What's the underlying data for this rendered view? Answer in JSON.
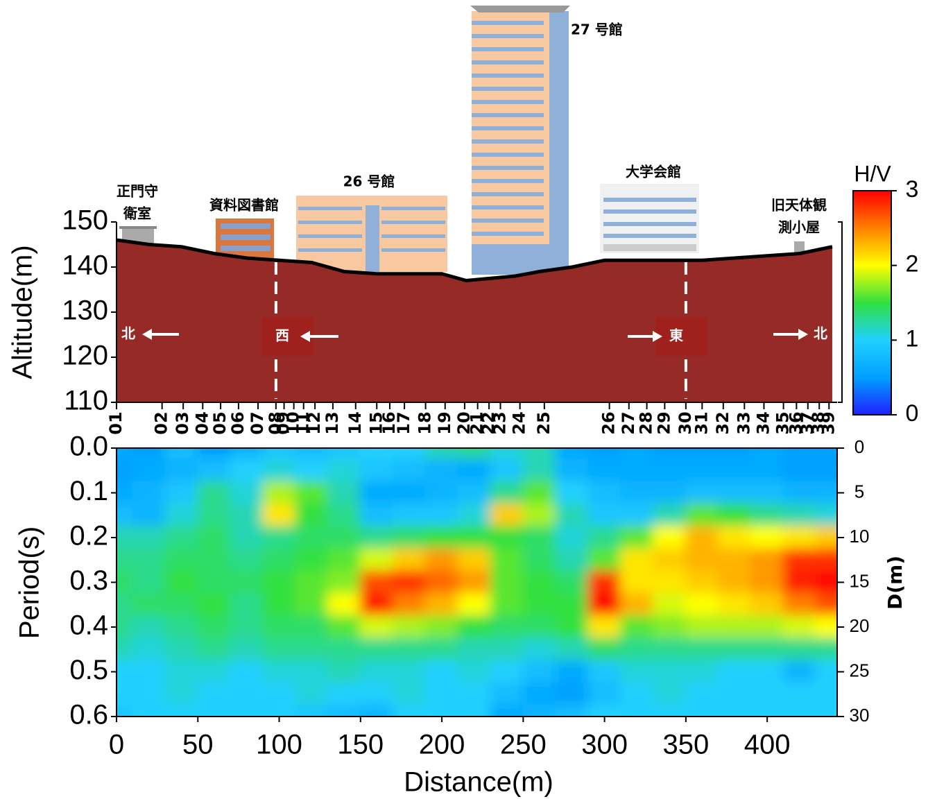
{
  "chart_data": [
    {
      "type": "area",
      "y_label": "Altitude(m)",
      "xlim": [
        0,
        443
      ],
      "ylim": [
        110,
        150
      ],
      "yticks": [
        110,
        120,
        130,
        140,
        150
      ],
      "x": [
        0,
        20,
        40,
        60,
        80,
        100,
        120,
        140,
        160,
        180,
        200,
        215,
        230,
        245,
        260,
        280,
        300,
        320,
        340,
        360,
        380,
        400,
        420,
        440
      ],
      "values": [
        146,
        145,
        144.5,
        143,
        142,
        141.5,
        141,
        139,
        138.5,
        138.5,
        138.5,
        137,
        137.5,
        138,
        139,
        140,
        141.5,
        141.5,
        141.5,
        141.5,
        142,
        142.5,
        143,
        144.5
      ],
      "color": "#962a26",
      "line_color": "#000000",
      "buildings": [
        [
          "正門守",
          "衛室"
        ],
        [
          "資料図書館"
        ],
        [
          "26 号館"
        ],
        [
          "27 号館"
        ],
        [
          "大学会館"
        ],
        [
          "旧天体観",
          "測小屋"
        ]
      ],
      "directions": [
        "北",
        "西",
        "東",
        "北"
      ],
      "stations": {
        "names": [
          "01",
          "02",
          "03",
          "04",
          "05",
          "06",
          "07",
          "08",
          "09",
          "10",
          "11",
          "12",
          "13",
          "14",
          "15",
          "16",
          "17",
          "18",
          "19",
          "20",
          "21",
          "22",
          "23",
          "24",
          "25",
          "26",
          "27",
          "28",
          "29",
          "30",
          "31",
          "32",
          "33",
          "34",
          "35",
          "36",
          "37",
          "38",
          "39"
        ],
        "x": [
          0,
          28,
          41,
          53,
          64,
          75,
          87,
          98,
          103,
          109,
          115,
          122,
          133,
          147,
          160,
          168,
          177,
          190,
          202,
          214,
          222,
          229,
          236,
          248,
          263,
          303,
          315,
          326,
          337,
          350,
          360,
          373,
          386,
          398,
          410,
          418,
          425,
          432,
          438
        ]
      }
    },
    {
      "type": "heatmap",
      "y_label": "Period(s)",
      "x_label": "Distance(m)",
      "y2_label": "D(m)",
      "colorbar_label": "H/V",
      "xlim": [
        0,
        443
      ],
      "xticks": [
        0,
        50,
        100,
        150,
        200,
        250,
        300,
        350,
        400
      ],
      "ylim": [
        0.6,
        0
      ],
      "yticks": [
        {
          "value": 0,
          "label": "0.0"
        },
        {
          "value": 0.1,
          "label": "0.1"
        },
        {
          "value": 0.2,
          "label": "0.2"
        },
        {
          "value": 0.3,
          "label": "0.3"
        },
        {
          "value": 0.4,
          "label": "0.4"
        },
        {
          "value": 0.5,
          "label": "0.5"
        },
        {
          "value": 0.6,
          "label": "0.6"
        }
      ],
      "y2lim": [
        30,
        0
      ],
      "y2ticks": [
        0,
        5,
        10,
        15,
        20,
        25,
        30
      ],
      "zlim": [
        0,
        3
      ],
      "zticks": [
        0,
        1,
        2,
        3
      ],
      "colormap": [
        "#2020ff",
        "#00a0ff",
        "#20d0ff",
        "#30e040",
        "#ffff00",
        "#ff8000",
        "#ff0000"
      ],
      "x": [
        0,
        20,
        40,
        60,
        80,
        100,
        120,
        140,
        160,
        180,
        200,
        220,
        240,
        260,
        280,
        300,
        320,
        340,
        360,
        380,
        400,
        420,
        440
      ],
      "y": [
        0,
        0.05,
        0.1,
        0.15,
        0.2,
        0.25,
        0.3,
        0.35,
        0.4,
        0.45,
        0.5,
        0.55,
        0.6
      ],
      "values": [
        [
          0.6,
          0.5,
          0.8,
          0.5,
          0.7,
          0.9,
          0.8,
          0.9,
          1.0,
          1.0,
          1.2,
          1.3,
          1.1,
          1.2,
          0.6,
          0.5,
          0.6,
          0.5,
          0.5,
          0.5,
          0.6,
          0.5,
          0.5
        ],
        [
          0.5,
          0.6,
          0.7,
          0.8,
          1.0,
          1.1,
          1.0,
          1.1,
          0.9,
          0.8,
          0.7,
          0.6,
          0.9,
          1.2,
          0.7,
          0.6,
          0.6,
          0.6,
          0.6,
          0.6,
          0.6,
          0.5,
          0.5
        ],
        [
          0.6,
          0.7,
          0.9,
          1.3,
          1.1,
          1.8,
          1.6,
          1.2,
          0.6,
          0.6,
          0.7,
          0.8,
          1.3,
          1.6,
          1.0,
          0.8,
          0.7,
          0.7,
          0.8,
          0.8,
          0.8,
          0.7,
          0.7
        ],
        [
          0.8,
          0.7,
          1.1,
          1.3,
          1.2,
          2.1,
          1.5,
          1.3,
          0.8,
          0.9,
          0.9,
          1.1,
          2.2,
          1.8,
          1.2,
          0.9,
          0.9,
          1.2,
          1.6,
          1.5,
          1.3,
          1.2,
          1.1
        ],
        [
          1.2,
          1.2,
          1.3,
          1.4,
          1.2,
          1.3,
          1.4,
          1.4,
          1.3,
          1.4,
          1.5,
          1.5,
          1.5,
          1.4,
          1.1,
          1.3,
          1.6,
          2.0,
          2.3,
          2.1,
          2.0,
          2.1,
          2.2
        ],
        [
          1.3,
          1.3,
          1.4,
          1.4,
          1.3,
          1.4,
          1.5,
          1.6,
          1.9,
          2.2,
          2.4,
          2.2,
          1.6,
          1.4,
          1.2,
          1.6,
          2.1,
          2.2,
          2.3,
          2.3,
          2.4,
          2.8,
          2.8
        ],
        [
          1.4,
          1.3,
          1.5,
          1.4,
          1.4,
          1.5,
          1.6,
          1.7,
          2.7,
          2.8,
          2.6,
          2.4,
          1.6,
          1.5,
          1.4,
          2.8,
          2.1,
          2.1,
          2.2,
          2.3,
          2.4,
          2.9,
          3.0
        ],
        [
          1.3,
          1.4,
          1.4,
          1.5,
          1.3,
          1.5,
          1.6,
          2.0,
          2.9,
          2.5,
          2.3,
          2.0,
          1.6,
          1.5,
          1.5,
          3.0,
          2.3,
          1.9,
          2.0,
          2.1,
          2.2,
          2.5,
          2.7
        ],
        [
          1.3,
          1.2,
          1.3,
          1.4,
          1.3,
          1.4,
          1.4,
          1.6,
          1.9,
          1.8,
          1.7,
          1.5,
          1.4,
          1.4,
          1.5,
          2.1,
          1.6,
          1.7,
          1.8,
          1.8,
          1.8,
          1.9,
          2.0
        ],
        [
          1.2,
          1.1,
          1.2,
          1.3,
          1.2,
          1.3,
          1.3,
          1.3,
          1.3,
          1.3,
          1.3,
          1.2,
          1.2,
          1.1,
          1.2,
          1.4,
          1.3,
          1.3,
          1.3,
          1.3,
          1.3,
          1.3,
          1.3
        ],
        [
          1.0,
          1.0,
          1.1,
          1.1,
          1.0,
          1.1,
          1.1,
          1.2,
          1.1,
          1.1,
          1.0,
          1.1,
          1.0,
          0.8,
          0.6,
          0.9,
          1.1,
          1.1,
          1.1,
          1.0,
          1.0,
          0.7,
          1.0
        ],
        [
          1.0,
          1.0,
          1.1,
          1.0,
          1.0,
          1.0,
          1.1,
          1.0,
          1.0,
          1.1,
          1.0,
          1.0,
          0.8,
          0.6,
          0.5,
          0.8,
          1.0,
          1.1,
          1.0,
          1.0,
          1.0,
          1.0,
          1.0
        ],
        [
          0.9,
          1.0,
          1.0,
          1.0,
          1.0,
          1.0,
          0.9,
          0.8,
          0.7,
          1.0,
          1.0,
          1.0,
          0.6,
          0.7,
          0.8,
          1.0,
          1.0,
          1.0,
          1.0,
          1.0,
          1.0,
          1.0,
          1.0
        ]
      ]
    }
  ]
}
